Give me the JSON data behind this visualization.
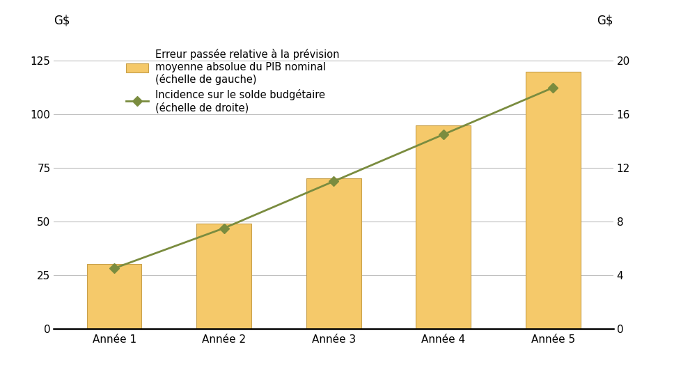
{
  "categories": [
    "Année 1",
    "Année 2",
    "Année 3",
    "Année 4",
    "Année 5"
  ],
  "bar_values": [
    30,
    49,
    70,
    95,
    120
  ],
  "line_values": [
    4.5,
    7.5,
    11.0,
    14.5,
    18.0
  ],
  "bar_color": "#F5C96A",
  "bar_edgecolor": "#C8A04A",
  "line_color": "#7A8C3F",
  "marker_color": "#7A8C3F",
  "left_ylim": [
    0,
    133
  ],
  "right_ylim": [
    0,
    21.28
  ],
  "left_yticks": [
    0,
    25,
    50,
    75,
    100,
    125
  ],
  "right_yticks": [
    0,
    4,
    8,
    12,
    16,
    20
  ],
  "legend_bar_label_line1": "Erreur passée relative à la prévision",
  "legend_bar_label_line2": "moyenne absolue du PIB nominal",
  "legend_bar_label_line3": "(échelle de gauche)",
  "legend_line_label_line1": "Incidence sur le solde budgétaire",
  "legend_line_label_line2": "(échelle de droite)",
  "background_color": "#ffffff",
  "grid_color": "#c0c0c0",
  "axis_color": "#000000",
  "fontsize_ticks": 11,
  "fontsize_legend": 10.5,
  "fontsize_ylabel": 12
}
